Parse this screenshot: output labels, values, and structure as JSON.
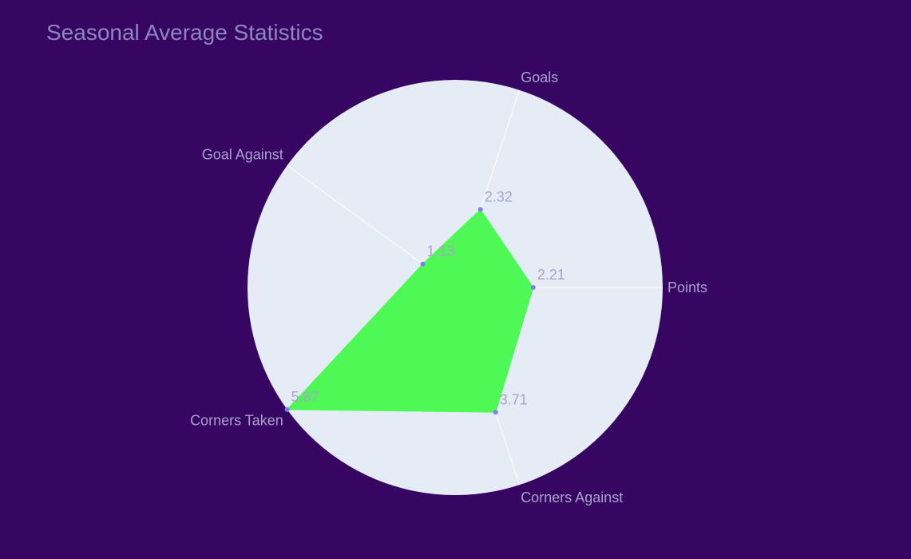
{
  "chart_data": {
    "type": "radar",
    "title": "Seasonal Average Statistics",
    "categories": [
      "Points",
      "Goals",
      "Goal Against",
      "Corners Taken",
      "Corners Against"
    ],
    "series": [
      {
        "values": [
          2.21,
          2.32,
          1.13,
          5.87,
          3.71
        ]
      }
    ],
    "value_labels": [
      "2.21",
      "2.32",
      "1.13",
      "5.87",
      "3.71"
    ],
    "radial_range": [
      0,
      5.87
    ],
    "angular_start_deg": 0,
    "direction": "counterclockwise",
    "show_radial_ticks": false,
    "colors": {
      "background": "#360662",
      "polar_bg": "#E5ECF6",
      "grid": "#FFFFFF",
      "fill": "#4FF955",
      "marker": "#7F7FEE",
      "title": "#8E86C0",
      "labels": "#A7A3CD"
    }
  }
}
